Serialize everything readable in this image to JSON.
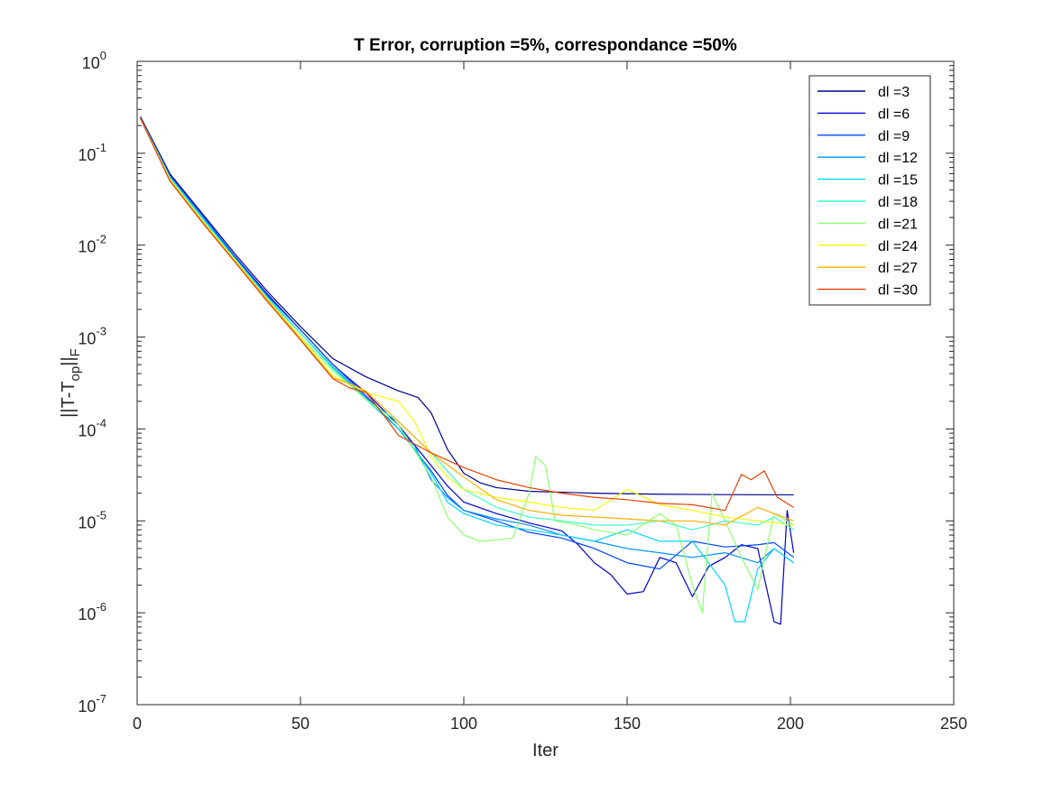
{
  "chart_data": {
    "type": "line",
    "title": "T Error, corruption =5%, correspondance =50%",
    "xlabel": "Iter",
    "ylabel": {
      "base": "||T-T",
      "sub1": "op",
      "mid": "||",
      "sub2": "F"
    },
    "xlim": [
      0,
      250
    ],
    "ylim": [
      1e-07,
      1
    ],
    "yscale": "log",
    "grid": false,
    "legend_position": "top-right",
    "x_ticks": [
      {
        "value": 0,
        "label": "0"
      },
      {
        "value": 50,
        "label": "50"
      },
      {
        "value": 100,
        "label": "100"
      },
      {
        "value": 150,
        "label": "150"
      },
      {
        "value": 200,
        "label": "200"
      },
      {
        "value": 250,
        "label": "250"
      }
    ],
    "y_ticks": [
      {
        "value": 1e-07,
        "base": "10",
        "exp": "-7"
      },
      {
        "value": 1e-06,
        "base": "10",
        "exp": "-6"
      },
      {
        "value": 1e-05,
        "base": "10",
        "exp": "-5"
      },
      {
        "value": 0.0001,
        "base": "10",
        "exp": "-4"
      },
      {
        "value": 0.001,
        "base": "10",
        "exp": "-3"
      },
      {
        "value": 0.01,
        "base": "10",
        "exp": "-2"
      },
      {
        "value": 0.1,
        "base": "10",
        "exp": "-1"
      },
      {
        "value": 1,
        "base": "10",
        "exp": "0"
      }
    ],
    "series": [
      {
        "name": "dl =3",
        "color": "#00008f",
        "points": [
          [
            1,
            0.25
          ],
          [
            10,
            0.06
          ],
          [
            20,
            0.022
          ],
          [
            30,
            0.008
          ],
          [
            40,
            0.0031
          ],
          [
            50,
            0.0013
          ],
          [
            60,
            0.00058
          ],
          [
            70,
            0.00037
          ],
          [
            80,
            0.00026
          ],
          [
            86,
            0.00022
          ],
          [
            90,
            0.00015
          ],
          [
            95,
            6e-05
          ],
          [
            100,
            3.3e-05
          ],
          [
            105,
            2.6e-05
          ],
          [
            110,
            2.3e-05
          ],
          [
            120,
            2.1e-05
          ],
          [
            140,
            2e-05
          ],
          [
            160,
            1.95e-05
          ],
          [
            180,
            1.93e-05
          ],
          [
            201,
            1.92e-05
          ]
        ]
      },
      {
        "name": "dl =6",
        "color": "#0000cc",
        "points": [
          [
            1,
            0.24
          ],
          [
            10,
            0.058
          ],
          [
            20,
            0.021
          ],
          [
            30,
            0.0075
          ],
          [
            40,
            0.0029
          ],
          [
            50,
            0.0012
          ],
          [
            60,
            0.0005
          ],
          [
            65,
            0.00035
          ],
          [
            70,
            0.00025
          ],
          [
            80,
            0.00011
          ],
          [
            90,
            4e-05
          ],
          [
            95,
            2.4e-05
          ],
          [
            100,
            1.6e-05
          ],
          [
            110,
            1.2e-05
          ],
          [
            120,
            9.5e-06
          ],
          [
            130,
            7.8e-06
          ],
          [
            135,
            5.5e-06
          ],
          [
            140,
            3.5e-06
          ],
          [
            145,
            2.6e-06
          ],
          [
            150,
            1.6e-06
          ],
          [
            155,
            1.7e-06
          ],
          [
            160,
            4e-06
          ],
          [
            165,
            3.5e-06
          ],
          [
            170,
            1.5e-06
          ],
          [
            175,
            3.2e-06
          ],
          [
            180,
            4e-06
          ],
          [
            185,
            5.5e-06
          ],
          [
            190,
            5e-06
          ],
          [
            195,
            8e-07
          ],
          [
            197,
            7.5e-07
          ],
          [
            199,
            1.3e-05
          ],
          [
            201,
            4.5e-06
          ]
        ]
      },
      {
        "name": "dl =9",
        "color": "#0047ff",
        "points": [
          [
            1,
            0.24
          ],
          [
            10,
            0.057
          ],
          [
            20,
            0.021
          ],
          [
            30,
            0.0074
          ],
          [
            40,
            0.0028
          ],
          [
            50,
            0.0012
          ],
          [
            60,
            0.0005
          ],
          [
            70,
            0.00023
          ],
          [
            80,
            0.0001
          ],
          [
            90,
            3.5e-05
          ],
          [
            95,
            1.9e-05
          ],
          [
            100,
            1.3e-05
          ],
          [
            110,
            1e-05
          ],
          [
            120,
            7.5e-06
          ],
          [
            130,
            6.5e-06
          ],
          [
            140,
            5e-06
          ],
          [
            150,
            3.5e-06
          ],
          [
            160,
            3e-06
          ],
          [
            170,
            6e-06
          ],
          [
            180,
            5.2e-06
          ],
          [
            190,
            5.5e-06
          ],
          [
            195,
            5.8e-06
          ],
          [
            201,
            4e-06
          ]
        ]
      },
      {
        "name": "dl =12",
        "color": "#0090ff",
        "points": [
          [
            1,
            0.24
          ],
          [
            10,
            0.056
          ],
          [
            20,
            0.02
          ],
          [
            30,
            0.0072
          ],
          [
            40,
            0.0027
          ],
          [
            50,
            0.0011
          ],
          [
            60,
            0.00047
          ],
          [
            70,
            0.00022
          ],
          [
            80,
            0.0001
          ],
          [
            85,
            6.5e-05
          ],
          [
            90,
            2.8e-05
          ],
          [
            95,
            1.8e-05
          ],
          [
            100,
            1.3e-05
          ],
          [
            110,
            1.05e-05
          ],
          [
            120,
            9e-06
          ],
          [
            130,
            7e-06
          ],
          [
            140,
            6e-06
          ],
          [
            150,
            5e-06
          ],
          [
            160,
            4.5e-06
          ],
          [
            170,
            4e-06
          ],
          [
            180,
            4.5e-06
          ],
          [
            190,
            3.5e-06
          ],
          [
            195,
            5e-06
          ],
          [
            201,
            3.5e-06
          ]
        ]
      },
      {
        "name": "dl =15",
        "color": "#00d6ff",
        "points": [
          [
            1,
            0.24
          ],
          [
            10,
            0.055
          ],
          [
            20,
            0.02
          ],
          [
            30,
            0.0071
          ],
          [
            40,
            0.0027
          ],
          [
            50,
            0.0011
          ],
          [
            60,
            0.00046
          ],
          [
            70,
            0.00021
          ],
          [
            80,
            0.0001
          ],
          [
            85,
            6e-05
          ],
          [
            90,
            3.3e-05
          ],
          [
            95,
            1.6e-05
          ],
          [
            100,
            1.2e-05
          ],
          [
            110,
            9e-06
          ],
          [
            120,
            8e-06
          ],
          [
            130,
            7e-06
          ],
          [
            140,
            6e-06
          ],
          [
            150,
            8e-06
          ],
          [
            160,
            6e-06
          ],
          [
            170,
            6e-06
          ],
          [
            180,
            2e-06
          ],
          [
            183,
            8e-07
          ],
          [
            186,
            8e-07
          ],
          [
            190,
            3e-06
          ],
          [
            195,
            5e-06
          ],
          [
            201,
            3.5e-06
          ]
        ]
      },
      {
        "name": "dl =18",
        "color": "#38ffc8",
        "points": [
          [
            1,
            0.24
          ],
          [
            10,
            0.054
          ],
          [
            20,
            0.019
          ],
          [
            30,
            0.007
          ],
          [
            40,
            0.0026
          ],
          [
            50,
            0.0011
          ],
          [
            60,
            0.00045
          ],
          [
            70,
            0.00021
          ],
          [
            80,
            0.00012
          ],
          [
            90,
            5.5e-05
          ],
          [
            100,
            2.2e-05
          ],
          [
            110,
            1.4e-05
          ],
          [
            120,
            1.1e-05
          ],
          [
            130,
            1e-05
          ],
          [
            140,
            9e-06
          ],
          [
            150,
            9e-06
          ],
          [
            160,
            1e-05
          ],
          [
            170,
            8e-06
          ],
          [
            180,
            1e-05
          ],
          [
            190,
            9e-06
          ],
          [
            195,
            1.1e-05
          ],
          [
            201,
            8e-06
          ]
        ]
      },
      {
        "name": "dl =21",
        "color": "#8fff70",
        "points": [
          [
            1,
            0.24
          ],
          [
            10,
            0.053
          ],
          [
            20,
            0.019
          ],
          [
            30,
            0.0069
          ],
          [
            40,
            0.0026
          ],
          [
            50,
            0.001
          ],
          [
            60,
            0.00043
          ],
          [
            70,
            0.00021
          ],
          [
            80,
            0.00011
          ],
          [
            90,
            3e-05
          ],
          [
            95,
            1.1e-05
          ],
          [
            100,
            7e-06
          ],
          [
            105,
            6e-06
          ],
          [
            110,
            6.2e-06
          ],
          [
            115,
            6.5e-06
          ],
          [
            120,
            2e-05
          ],
          [
            122,
            5e-05
          ],
          [
            125,
            4e-05
          ],
          [
            128,
            1e-05
          ],
          [
            135,
            9e-06
          ],
          [
            140,
            8e-06
          ],
          [
            150,
            7e-06
          ],
          [
            160,
            1.2e-05
          ],
          [
            165,
            9e-06
          ],
          [
            170,
            2e-06
          ],
          [
            173,
            1e-06
          ],
          [
            176,
            2e-05
          ],
          [
            180,
            1e-05
          ],
          [
            185,
            4e-06
          ],
          [
            190,
            1.8e-06
          ],
          [
            195,
            1.2e-05
          ],
          [
            201,
            9e-06
          ]
        ]
      },
      {
        "name": "dl =24",
        "color": "#f2ff0d",
        "points": [
          [
            1,
            0.24
          ],
          [
            10,
            0.052
          ],
          [
            20,
            0.018
          ],
          [
            30,
            0.0068
          ],
          [
            40,
            0.0025
          ],
          [
            50,
            0.001
          ],
          [
            60,
            0.00038
          ],
          [
            70,
            0.00025
          ],
          [
            80,
            0.0002
          ],
          [
            85,
            0.00012
          ],
          [
            90,
            5e-05
          ],
          [
            95,
            3e-05
          ],
          [
            100,
            2.2e-05
          ],
          [
            110,
            1.8e-05
          ],
          [
            120,
            1.6e-05
          ],
          [
            130,
            1.4e-05
          ],
          [
            140,
            1.3e-05
          ],
          [
            150,
            2.2e-05
          ],
          [
            160,
            1.5e-05
          ],
          [
            170,
            1.3e-05
          ],
          [
            180,
            1.1e-05
          ],
          [
            190,
            1e-05
          ],
          [
            201,
            9e-06
          ]
        ]
      },
      {
        "name": "dl =27",
        "color": "#ffb000",
        "points": [
          [
            1,
            0.24
          ],
          [
            10,
            0.051
          ],
          [
            20,
            0.018
          ],
          [
            30,
            0.0066
          ],
          [
            40,
            0.0025
          ],
          [
            50,
            0.00095
          ],
          [
            60,
            0.00036
          ],
          [
            65,
            0.00031
          ],
          [
            70,
            0.00026
          ],
          [
            80,
            0.00012
          ],
          [
            90,
            5.5e-05
          ],
          [
            100,
            3e-05
          ],
          [
            110,
            1.7e-05
          ],
          [
            120,
            1.3e-05
          ],
          [
            130,
            1.15e-05
          ],
          [
            140,
            1.1e-05
          ],
          [
            150,
            1.05e-05
          ],
          [
            160,
            1e-05
          ],
          [
            170,
            1e-05
          ],
          [
            180,
            9e-06
          ],
          [
            190,
            1.4e-05
          ],
          [
            195,
            1.2e-05
          ],
          [
            201,
            1e-05
          ]
        ]
      },
      {
        "name": "dl =30",
        "color": "#e84000",
        "points": [
          [
            1,
            0.24
          ],
          [
            10,
            0.05
          ],
          [
            20,
            0.0175
          ],
          [
            30,
            0.0065
          ],
          [
            40,
            0.0024
          ],
          [
            50,
            0.00093
          ],
          [
            60,
            0.00035
          ],
          [
            65,
            0.00028
          ],
          [
            70,
            0.00025
          ],
          [
            75,
            0.00015
          ],
          [
            80,
            8.5e-05
          ],
          [
            90,
            5.5e-05
          ],
          [
            100,
            3.8e-05
          ],
          [
            110,
            2.8e-05
          ],
          [
            120,
            2.3e-05
          ],
          [
            130,
            2e-05
          ],
          [
            140,
            1.8e-05
          ],
          [
            150,
            1.7e-05
          ],
          [
            160,
            1.55e-05
          ],
          [
            170,
            1.5e-05
          ],
          [
            180,
            1.3e-05
          ],
          [
            185,
            3.2e-05
          ],
          [
            188,
            2.8e-05
          ],
          [
            192,
            3.5e-05
          ],
          [
            196,
            1.8e-05
          ],
          [
            201,
            1.4e-05
          ]
        ]
      }
    ]
  }
}
